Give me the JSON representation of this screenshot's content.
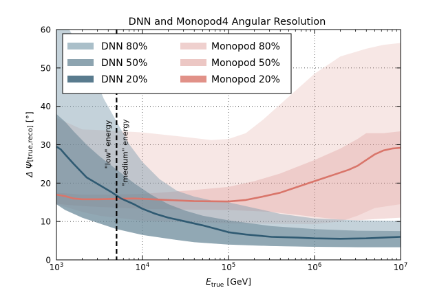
{
  "chart_data": {
    "type": "area",
    "title": "DNN and Monopod4 Angular Resolution",
    "xlabel_main": "E",
    "xlabel_sub": "true",
    "xlabel_unit": " [GeV]",
    "ylabel_main": "Δ Ψ",
    "ylabel_sub": "[true,reco]",
    "ylabel_unit": " [°]",
    "xscale": "log",
    "xlim": [
      1000,
      10000000
    ],
    "ylim": [
      0,
      60
    ],
    "grid": true,
    "legend_position": "top-left",
    "x_ticks": [
      {
        "value": 1000,
        "base": "10",
        "exp": "3"
      },
      {
        "value": 10000,
        "base": "10",
        "exp": "4"
      },
      {
        "value": 100000,
        "base": "10",
        "exp": "5"
      },
      {
        "value": 1000000,
        "base": "10",
        "exp": "6"
      },
      {
        "value": 10000000,
        "base": "10",
        "exp": "7"
      }
    ],
    "y_ticks": [
      0,
      10,
      20,
      30,
      40,
      50,
      60
    ],
    "y_tick_labels": [
      "0",
      "10",
      "20",
      "30",
      "40",
      "50",
      "60"
    ],
    "threshold": {
      "x": 5000,
      "label_low": "\"low\" energy",
      "label_medium": "\"medium\" energy"
    },
    "series": [
      {
        "name": "Monopod 80%",
        "group": "Monopod",
        "kind": "band",
        "color": "#d9908a",
        "opacity": 0.22,
        "lower": [
          [
            3.0,
            14.5
          ],
          [
            3.3,
            12.5
          ],
          [
            3.5,
            11.5
          ],
          [
            4.0,
            10.2
          ],
          [
            4.5,
            9.8
          ],
          [
            5.0,
            9.5
          ],
          [
            5.5,
            9.4
          ],
          [
            6.0,
            9.3
          ],
          [
            6.3,
            10.0
          ],
          [
            6.5,
            11.5
          ],
          [
            6.7,
            13.5
          ],
          [
            7.0,
            14.5
          ]
        ],
        "upper": [
          [
            3.0,
            37.0
          ],
          [
            3.1,
            36.0
          ],
          [
            3.3,
            34.0
          ],
          [
            3.5,
            33.8
          ],
          [
            4.0,
            33.2
          ],
          [
            4.5,
            32.0
          ],
          [
            4.8,
            31.2
          ],
          [
            5.0,
            31.5
          ],
          [
            5.2,
            33.0
          ],
          [
            5.4,
            36.5
          ],
          [
            5.6,
            40.5
          ],
          [
            6.0,
            48.5
          ],
          [
            6.3,
            53.0
          ],
          [
            6.6,
            55.0
          ],
          [
            6.8,
            56.0
          ],
          [
            7.0,
            56.5
          ]
        ]
      },
      {
        "name": "Monopod 50%",
        "group": "Monopod",
        "kind": "band",
        "color": "#d9908a",
        "opacity": 0.3,
        "lower": [
          [
            3.0,
            14.6
          ],
          [
            3.2,
            14.2
          ],
          [
            3.4,
            13.9
          ],
          [
            3.7,
            13.6
          ],
          [
            4.0,
            13.3
          ],
          [
            4.5,
            13.1
          ],
          [
            5.0,
            13.0
          ],
          [
            5.5,
            12.5
          ],
          [
            6.0,
            11.2
          ],
          [
            6.3,
            10.5
          ],
          [
            6.5,
            10.3
          ],
          [
            6.7,
            10.6
          ],
          [
            7.0,
            11.0
          ]
        ],
        "upper": [
          [
            3.0,
            17.5
          ],
          [
            3.3,
            17.0
          ],
          [
            3.6,
            17.0
          ],
          [
            4.0,
            17.2
          ],
          [
            4.5,
            18.0
          ],
          [
            5.0,
            19.0
          ],
          [
            5.3,
            20.5
          ],
          [
            5.6,
            22.5
          ],
          [
            6.0,
            26.0
          ],
          [
            6.3,
            29.0
          ],
          [
            6.5,
            31.5
          ],
          [
            6.6,
            33.0
          ],
          [
            6.8,
            33.0
          ],
          [
            7.0,
            33.5
          ]
        ]
      },
      {
        "name": "Monopod 20%",
        "group": "Monopod",
        "kind": "line",
        "color": "#d9756a",
        "opacity": 1,
        "points": [
          [
            3.0,
            17.0
          ],
          [
            3.1,
            16.6
          ],
          [
            3.2,
            16.0
          ],
          [
            3.3,
            15.8
          ],
          [
            3.5,
            15.8
          ],
          [
            3.7,
            15.9
          ],
          [
            3.9,
            16.0
          ],
          [
            4.0,
            15.9
          ],
          [
            4.3,
            15.6
          ],
          [
            4.6,
            15.3
          ],
          [
            5.0,
            15.2
          ],
          [
            5.2,
            15.6
          ],
          [
            5.4,
            16.5
          ],
          [
            5.6,
            17.5
          ],
          [
            5.8,
            19.0
          ],
          [
            6.0,
            20.5
          ],
          [
            6.2,
            22.0
          ],
          [
            6.4,
            23.5
          ],
          [
            6.5,
            24.5
          ],
          [
            6.6,
            26.0
          ],
          [
            6.7,
            27.5
          ],
          [
            6.8,
            28.5
          ],
          [
            6.9,
            29.0
          ],
          [
            7.0,
            29.2
          ]
        ]
      },
      {
        "name": "DNN 80%",
        "group": "DNN",
        "kind": "band",
        "color": "#7d9cac",
        "opacity": 0.45,
        "lower": [
          [
            3.0,
            14.5
          ],
          [
            3.1,
            13.0
          ],
          [
            3.3,
            11.0
          ],
          [
            3.5,
            9.5
          ],
          [
            3.7,
            8.0
          ],
          [
            4.0,
            6.5
          ],
          [
            4.3,
            5.5
          ],
          [
            4.6,
            4.6
          ],
          [
            5.0,
            4.0
          ],
          [
            5.5,
            3.6
          ],
          [
            6.0,
            3.4
          ],
          [
            6.5,
            3.3
          ],
          [
            7.0,
            3.3
          ]
        ],
        "upper": [
          [
            3.0,
            60.0
          ],
          [
            3.15,
            60.0
          ],
          [
            3.25,
            56.0
          ],
          [
            3.4,
            50.0
          ],
          [
            3.55,
            42.0
          ],
          [
            3.7,
            36.0
          ],
          [
            3.85,
            30.0
          ],
          [
            4.0,
            25.5
          ],
          [
            4.2,
            21.0
          ],
          [
            4.4,
            18.0
          ],
          [
            4.6,
            16.5
          ],
          [
            4.8,
            15.5
          ],
          [
            5.0,
            15.0
          ],
          [
            5.3,
            13.5
          ],
          [
            5.6,
            12.0
          ],
          [
            6.0,
            10.8
          ],
          [
            6.5,
            10.3
          ],
          [
            7.0,
            10.2
          ]
        ]
      },
      {
        "name": "DNN 50%",
        "group": "DNN",
        "kind": "band",
        "color": "#5d7d8e",
        "opacity": 0.5,
        "lower": [
          [
            3.0,
            14.5
          ],
          [
            3.1,
            13.0
          ],
          [
            3.3,
            11.0
          ],
          [
            3.5,
            9.5
          ],
          [
            3.7,
            8.0
          ],
          [
            4.0,
            6.5
          ],
          [
            4.3,
            5.5
          ],
          [
            4.6,
            4.6
          ],
          [
            5.0,
            4.0
          ],
          [
            5.5,
            3.6
          ],
          [
            6.0,
            3.4
          ],
          [
            6.5,
            3.3
          ],
          [
            7.0,
            3.3
          ]
        ],
        "upper": [
          [
            3.0,
            38.0
          ],
          [
            3.1,
            36.0
          ],
          [
            3.2,
            33.5
          ],
          [
            3.35,
            30.0
          ],
          [
            3.5,
            27.0
          ],
          [
            3.7,
            23.5
          ],
          [
            3.9,
            20.0
          ],
          [
            4.1,
            17.0
          ],
          [
            4.3,
            14.5
          ],
          [
            4.5,
            12.8
          ],
          [
            4.7,
            11.5
          ],
          [
            5.0,
            10.3
          ],
          [
            5.5,
            8.8
          ],
          [
            6.0,
            8.0
          ],
          [
            6.5,
            7.6
          ],
          [
            7.0,
            7.5
          ]
        ]
      },
      {
        "name": "DNN 20%",
        "group": "DNN",
        "kind": "line",
        "color": "#2f5a72",
        "opacity": 1,
        "points": [
          [
            3.0,
            29.5
          ],
          [
            3.05,
            28.8
          ],
          [
            3.1,
            27.5
          ],
          [
            3.2,
            25.0
          ],
          [
            3.35,
            21.5
          ],
          [
            3.5,
            19.5
          ],
          [
            3.65,
            17.5
          ],
          [
            3.75,
            16.0
          ],
          [
            3.9,
            14.5
          ],
          [
            4.0,
            13.3
          ],
          [
            4.15,
            12.0
          ],
          [
            4.3,
            11.0
          ],
          [
            4.5,
            10.0
          ],
          [
            4.7,
            9.0
          ],
          [
            4.9,
            7.8
          ],
          [
            5.0,
            7.2
          ],
          [
            5.2,
            6.6
          ],
          [
            5.5,
            6.0
          ],
          [
            5.8,
            5.8
          ],
          [
            6.0,
            5.6
          ],
          [
            6.3,
            5.5
          ],
          [
            6.6,
            5.6
          ],
          [
            6.8,
            5.8
          ],
          [
            7.0,
            6.0
          ]
        ]
      }
    ],
    "legend": {
      "left": [
        "DNN 80%",
        "DNN 50%",
        "DNN 20%"
      ],
      "right": [
        "Monopod 80%",
        "Monopod 50%",
        "Monopod 20%"
      ]
    }
  }
}
